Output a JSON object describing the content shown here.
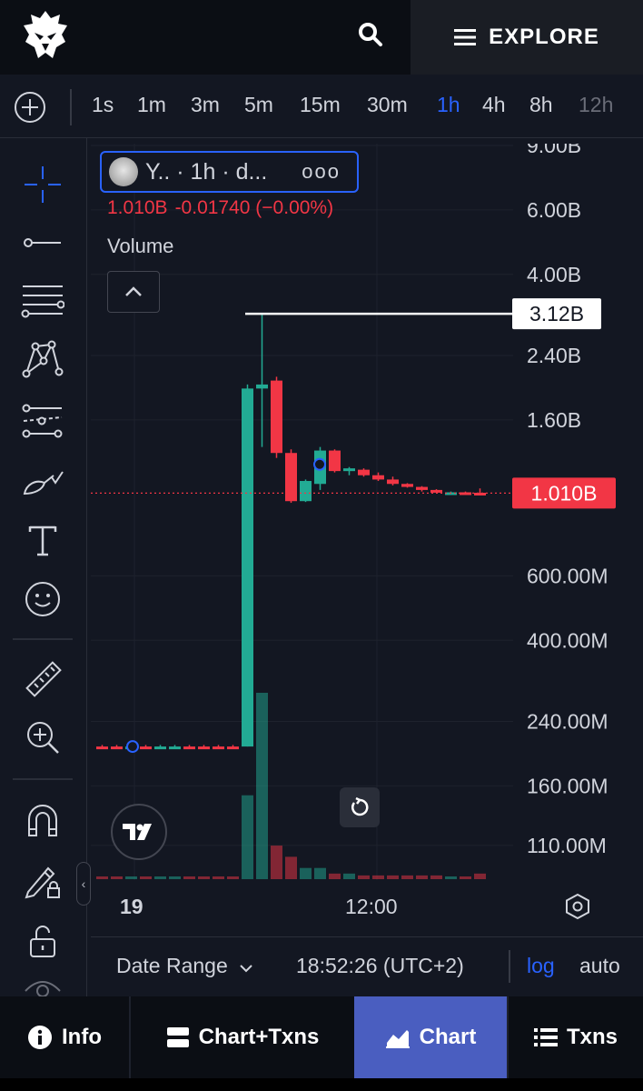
{
  "header": {
    "logo_icon": "eagle-logo-icon",
    "search_icon": "search-icon",
    "explore_label": "EXPLORE"
  },
  "timeframes": [
    {
      "label": "1s",
      "state": "normal"
    },
    {
      "label": "1m",
      "state": "normal"
    },
    {
      "label": "3m",
      "state": "normal"
    },
    {
      "label": "5m",
      "state": "normal"
    },
    {
      "label": "15m",
      "state": "normal"
    },
    {
      "label": "30m",
      "state": "normal"
    },
    {
      "label": "1h",
      "state": "active"
    },
    {
      "label": "4h",
      "state": "normal"
    },
    {
      "label": "8h",
      "state": "normal"
    },
    {
      "label": "12h",
      "state": "dim"
    }
  ],
  "tools": [
    "crosshair-icon",
    "horizontal-line-icon",
    "fib-retracement-icon",
    "xabcd-pattern-icon",
    "parallel-channel-icon",
    "brush-icon",
    "text-icon",
    "emoji-icon",
    "ruler-icon",
    "zoom-in-icon",
    "magnet-icon",
    "lock-drawing-icon",
    "lock-icon",
    "eye-icon"
  ],
  "legend": {
    "symbol": "Y.. · 1h · d...",
    "more": "ooo",
    "price": "1.010B",
    "change": "-0.01740 (−0.00%)",
    "volume_label": "Volume"
  },
  "colors": {
    "up": "#22ab94",
    "down": "#f23645",
    "accent": "#2962ff",
    "active_tab": "#4a5ec0"
  },
  "chart_data": {
    "type": "candlestick",
    "scale": "log",
    "y_ticks": [
      "9.00B",
      "6.00B",
      "4.00B",
      "2.40B",
      "1.60B",
      "600.00M",
      "400.00M",
      "240.00M",
      "160.00M",
      "110.00M"
    ],
    "x_ticks": [
      "19",
      "12:00"
    ],
    "price_marker": "3.12B",
    "last_price": "1.010B",
    "candles": [
      {
        "o": 205,
        "h": 207,
        "l": 203,
        "c": 205,
        "dir": "down"
      },
      {
        "o": 205,
        "h": 207,
        "l": 203,
        "c": 205,
        "dir": "down"
      },
      {
        "o": 205,
        "h": 207,
        "l": 203,
        "c": 205,
        "dir": "up"
      },
      {
        "o": 205,
        "h": 207,
        "l": 203,
        "c": 205,
        "dir": "down"
      },
      {
        "o": 205,
        "h": 207,
        "l": 203,
        "c": 205,
        "dir": "up"
      },
      {
        "o": 205,
        "h": 207,
        "l": 203,
        "c": 205,
        "dir": "up"
      },
      {
        "o": 205,
        "h": 207,
        "l": 203,
        "c": 205,
        "dir": "down"
      },
      {
        "o": 205,
        "h": 207,
        "l": 203,
        "c": 205,
        "dir": "down"
      },
      {
        "o": 205,
        "h": 207,
        "l": 203,
        "c": 205,
        "dir": "down"
      },
      {
        "o": 205,
        "h": 207,
        "l": 203,
        "c": 205,
        "dir": "down"
      },
      {
        "o": 205,
        "h": 2000,
        "l": 205,
        "c": 1950,
        "dir": "up"
      },
      {
        "o": 1950,
        "h": 3120,
        "l": 1350,
        "c": 2000,
        "dir": "up"
      },
      {
        "o": 2050,
        "h": 2100,
        "l": 1260,
        "c": 1300,
        "dir": "down"
      },
      {
        "o": 1300,
        "h": 1330,
        "l": 950,
        "c": 960,
        "dir": "down"
      },
      {
        "o": 960,
        "h": 1100,
        "l": 955,
        "c": 1090,
        "dir": "up"
      },
      {
        "o": 1070,
        "h": 1350,
        "l": 1030,
        "c": 1320,
        "dir": "up"
      },
      {
        "o": 1320,
        "h": 1330,
        "l": 1150,
        "c": 1160,
        "dir": "down"
      },
      {
        "o": 1160,
        "h": 1190,
        "l": 1130,
        "c": 1180,
        "dir": "up"
      },
      {
        "o": 1170,
        "h": 1180,
        "l": 1120,
        "c": 1130,
        "dir": "down"
      },
      {
        "o": 1130,
        "h": 1150,
        "l": 1090,
        "c": 1100,
        "dir": "down"
      },
      {
        "o": 1100,
        "h": 1120,
        "l": 1060,
        "c": 1070,
        "dir": "down"
      },
      {
        "o": 1070,
        "h": 1075,
        "l": 1045,
        "c": 1050,
        "dir": "down"
      },
      {
        "o": 1050,
        "h": 1055,
        "l": 1020,
        "c": 1030,
        "dir": "down"
      },
      {
        "o": 1030,
        "h": 1035,
        "l": 1015,
        "c": 1020,
        "dir": "down"
      },
      {
        "o": 1010,
        "h": 1020,
        "l": 1000,
        "c": 1015,
        "dir": "up"
      },
      {
        "o": 1015,
        "h": 1020,
        "l": 1005,
        "c": 1012,
        "dir": "down"
      },
      {
        "o": 1012,
        "h": 1040,
        "l": 1000,
        "c": 1010,
        "dir": "down"
      }
    ],
    "volume": [
      0.01,
      0.01,
      0.01,
      0.01,
      0.01,
      0.01,
      0.01,
      0.01,
      0.01,
      0.01,
      0.45,
      1.0,
      0.18,
      0.12,
      0.06,
      0.06,
      0.03,
      0.03,
      0.02,
      0.02,
      0.02,
      0.02,
      0.02,
      0.02,
      0.01,
      0.01,
      0.03
    ]
  },
  "timeline": {
    "date_range": "Date Range",
    "clock": "18:52:26 (UTC+2)",
    "log": "log",
    "auto": "auto"
  },
  "nav": {
    "info": "Info",
    "chart_txns": "Chart+Txns",
    "chart": "Chart",
    "txns": "Txns"
  }
}
